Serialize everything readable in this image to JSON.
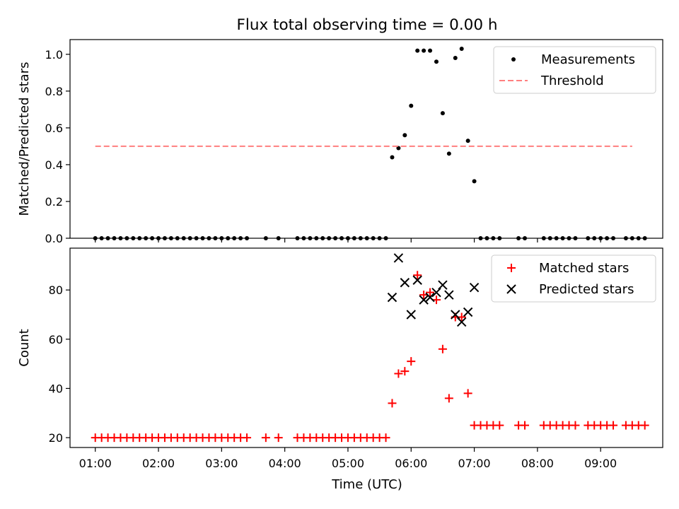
{
  "figure": {
    "title": "Flux total observing time = 0.00 h",
    "shared_xlabel": "Time (UTC)"
  },
  "chart_data": [
    {
      "type": "scatter",
      "ylabel": "Matched/Predicted stars",
      "ylim": [
        0,
        1.08
      ],
      "yticks": [
        0.0,
        0.2,
        0.4,
        0.6,
        0.8,
        1.0
      ],
      "yticklabels": [
        "0.0",
        "0.2",
        "0.4",
        "0.6",
        "0.8",
        "1.0"
      ],
      "xticks": [
        "01:00",
        "02:00",
        "03:00",
        "04:00",
        "05:00",
        "06:00",
        "07:00",
        "08:00",
        "09:00"
      ],
      "show_xticklabels": false,
      "legend": {
        "placement": "top-right",
        "entries": [
          "Measurements",
          "Threshold"
        ]
      },
      "series": [
        {
          "name": "Measurements",
          "marker": "dot",
          "color": "#000000",
          "x": [
            "01:00",
            "01:06",
            "01:12",
            "01:18",
            "01:24",
            "01:30",
            "01:36",
            "01:42",
            "01:48",
            "01:54",
            "02:00",
            "02:06",
            "02:12",
            "02:18",
            "02:24",
            "02:30",
            "02:36",
            "02:42",
            "02:48",
            "02:54",
            "03:00",
            "03:06",
            "03:12",
            "03:18",
            "03:24",
            "03:42",
            "03:54",
            "04:12",
            "04:18",
            "04:24",
            "04:30",
            "04:36",
            "04:42",
            "04:48",
            "04:54",
            "05:00",
            "05:06",
            "05:12",
            "05:18",
            "05:24",
            "05:30",
            "05:36",
            "05:42",
            "05:48",
            "05:54",
            "06:00",
            "06:06",
            "06:12",
            "06:18",
            "06:24",
            "06:30",
            "06:36",
            "06:42",
            "06:48",
            "06:54",
            "07:00",
            "07:06",
            "07:12",
            "07:18",
            "07:24",
            "07:42",
            "07:48",
            "08:06",
            "08:12",
            "08:18",
            "08:24",
            "08:30",
            "08:36",
            "08:48",
            "08:54",
            "09:00",
            "09:06",
            "09:12",
            "09:24",
            "09:30",
            "09:36",
            "09:42"
          ],
          "y": [
            0,
            0,
            0,
            0,
            0,
            0,
            0,
            0,
            0,
            0,
            0,
            0,
            0,
            0,
            0,
            0,
            0,
            0,
            0,
            0,
            0,
            0,
            0,
            0,
            0,
            0,
            0,
            0,
            0,
            0,
            0,
            0,
            0,
            0,
            0,
            0,
            0,
            0,
            0,
            0,
            0,
            0,
            0.44,
            0.49,
            0.56,
            0.72,
            1.02,
            1.02,
            1.02,
            0.96,
            0.68,
            0.46,
            0.98,
            1.03,
            0.53,
            0.31,
            0,
            0,
            0,
            0,
            0,
            0,
            0,
            0,
            0,
            0,
            0,
            0,
            0,
            0,
            0,
            0,
            0,
            0,
            0,
            0,
            0
          ]
        },
        {
          "name": "Threshold",
          "marker": "dashed-line",
          "color": "#ff7f7f",
          "x": [
            "01:00",
            "09:30"
          ],
          "y": [
            0.5,
            0.5
          ]
        }
      ]
    },
    {
      "type": "scatter",
      "ylabel": "Count",
      "xlabel": "Time (UTC)",
      "ylim": [
        16,
        97
      ],
      "yticks": [
        20,
        40,
        60,
        80
      ],
      "yticklabels": [
        "20",
        "40",
        "60",
        "80"
      ],
      "xticks": [
        "01:00",
        "02:00",
        "03:00",
        "04:00",
        "05:00",
        "06:00",
        "07:00",
        "08:00",
        "09:00"
      ],
      "show_xticklabels": true,
      "legend": {
        "placement": "top-right",
        "entries": [
          "Matched stars",
          "Predicted stars"
        ]
      },
      "series": [
        {
          "name": "Matched stars",
          "marker": "plus",
          "color": "#ff0000",
          "x": [
            "01:00",
            "01:06",
            "01:12",
            "01:18",
            "01:24",
            "01:30",
            "01:36",
            "01:42",
            "01:48",
            "01:54",
            "02:00",
            "02:06",
            "02:12",
            "02:18",
            "02:24",
            "02:30",
            "02:36",
            "02:42",
            "02:48",
            "02:54",
            "03:00",
            "03:06",
            "03:12",
            "03:18",
            "03:24",
            "03:42",
            "03:54",
            "04:12",
            "04:18",
            "04:24",
            "04:30",
            "04:36",
            "04:42",
            "04:48",
            "04:54",
            "05:00",
            "05:06",
            "05:12",
            "05:18",
            "05:24",
            "05:30",
            "05:36",
            "05:42",
            "05:48",
            "05:54",
            "06:00",
            "06:06",
            "06:12",
            "06:18",
            "06:24",
            "06:30",
            "06:36",
            "06:42",
            "06:48",
            "06:54",
            "07:00",
            "07:06",
            "07:12",
            "07:18",
            "07:24",
            "07:42",
            "07:48",
            "08:06",
            "08:12",
            "08:18",
            "08:24",
            "08:30",
            "08:36",
            "08:48",
            "08:54",
            "09:00",
            "09:06",
            "09:12",
            "09:24",
            "09:30",
            "09:36",
            "09:42"
          ],
          "y": [
            20,
            20,
            20,
            20,
            20,
            20,
            20,
            20,
            20,
            20,
            20,
            20,
            20,
            20,
            20,
            20,
            20,
            20,
            20,
            20,
            20,
            20,
            20,
            20,
            20,
            20,
            20,
            20,
            20,
            20,
            20,
            20,
            20,
            20,
            20,
            20,
            20,
            20,
            20,
            20,
            20,
            20,
            34,
            46,
            47,
            51,
            86,
            78,
            79,
            76,
            56,
            36,
            69,
            69,
            38,
            25,
            25,
            25,
            25,
            25,
            25,
            25,
            25,
            25,
            25,
            25,
            25,
            25,
            25,
            25,
            25,
            25,
            25,
            25,
            25,
            25,
            25
          ]
        },
        {
          "name": "Predicted stars",
          "marker": "x",
          "color": "#000000",
          "x": [
            "05:42",
            "05:48",
            "05:54",
            "06:00",
            "06:06",
            "06:12",
            "06:18",
            "06:24",
            "06:30",
            "06:36",
            "06:42",
            "06:48",
            "06:54",
            "07:00"
          ],
          "y": [
            77,
            93,
            83,
            70,
            84,
            76,
            77,
            79,
            82,
            78,
            70,
            67,
            71,
            81
          ]
        }
      ]
    }
  ]
}
